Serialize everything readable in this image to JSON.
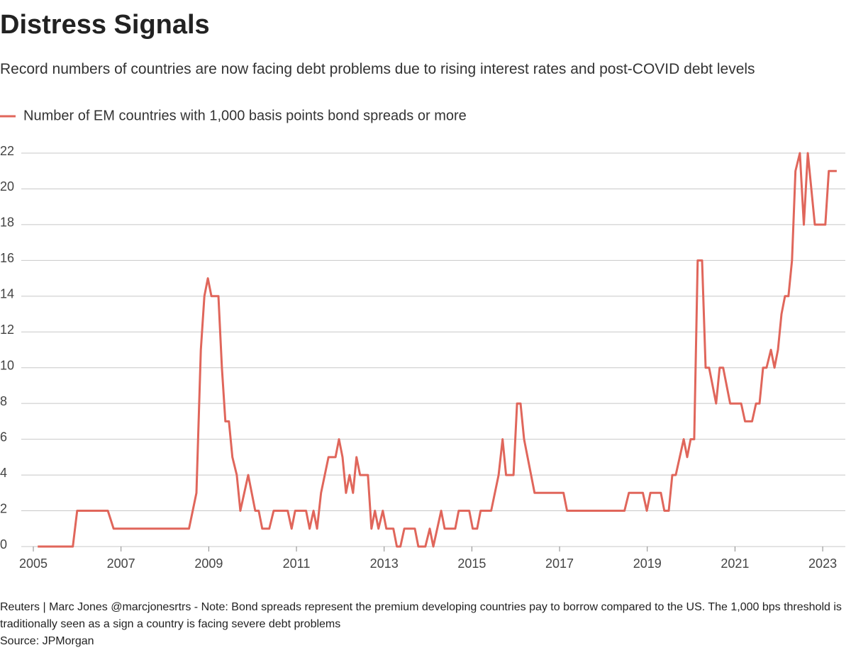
{
  "chart_data": {
    "type": "line",
    "title": "Distress Signals",
    "subtitle": "Record numbers of countries are now facing debt problems due to rising interest rates and post-COVID debt levels",
    "note": "Reuters | Marc Jones @marcjonesrtrs - Note: Bond spreads represent the premium developing countries pay to borrow compared to the US. The 1,000 bps threshold is traditionally seen as a sign a country is facing severe debt problems",
    "source": "Source: JPMorgan",
    "x": [
      2005.1,
      2005.9,
      2006.0,
      2006.7,
      2006.83,
      2008.55,
      2008.72,
      2008.82,
      2008.9,
      2008.98,
      2009.06,
      2009.22,
      2009.3,
      2009.38,
      2009.46,
      2009.54,
      2009.64,
      2009.72,
      2009.9,
      2010.06,
      2010.14,
      2010.22,
      2010.38,
      2010.48,
      2010.8,
      2010.89,
      2010.97,
      2011.22,
      2011.3,
      2011.39,
      2011.47,
      2011.56,
      2011.73,
      2011.89,
      2011.97,
      2012.05,
      2012.13,
      2012.21,
      2012.29,
      2012.37,
      2012.45,
      2012.63,
      2012.71,
      2012.79,
      2012.87,
      2012.97,
      2013.05,
      2013.21,
      2013.29,
      2013.37,
      2013.46,
      2013.7,
      2013.78,
      2013.94,
      2014.04,
      2014.12,
      2014.3,
      2014.38,
      2014.62,
      2014.7,
      2014.94,
      2015.02,
      2015.12,
      2015.2,
      2015.44,
      2015.61,
      2015.7,
      2015.78,
      2015.95,
      2016.03,
      2016.11,
      2016.19,
      2016.43,
      2017.09,
      2017.17,
      2018.48,
      2018.58,
      2018.9,
      2018.99,
      2019.07,
      2019.31,
      2019.39,
      2019.49,
      2019.57,
      2019.65,
      2019.83,
      2019.91,
      2019.99,
      2020.07,
      2020.15,
      2020.25,
      2020.33,
      2020.41,
      2020.57,
      2020.65,
      2020.73,
      2020.89,
      2021.14,
      2021.23,
      2021.39,
      2021.48,
      2021.56,
      2021.64,
      2021.72,
      2021.82,
      2021.9,
      2021.98,
      2022.06,
      2022.14,
      2022.22,
      2022.3,
      2022.38,
      2022.48,
      2022.57,
      2022.66,
      2022.82,
      2023.06,
      2023.14,
      2023.32
    ],
    "series": [
      {
        "name": "Number of EM countries with 1,000 basis points bond spreads or more",
        "color": "#e0665b",
        "values": [
          0,
          0,
          2,
          2,
          1,
          1,
          3,
          11,
          14,
          15,
          14,
          14,
          10,
          7,
          7,
          5,
          4,
          2,
          4,
          2,
          2,
          1,
          1,
          2,
          2,
          1,
          2,
          2,
          1,
          2,
          1,
          3,
          5,
          5,
          6,
          5,
          3,
          4,
          3,
          5,
          4,
          4,
          1,
          2,
          1,
          2,
          1,
          1,
          0,
          0,
          1,
          1,
          0,
          0,
          1,
          0,
          2,
          1,
          1,
          2,
          2,
          1,
          1,
          2,
          2,
          4,
          6,
          4,
          4,
          8,
          8,
          6,
          3,
          3,
          2,
          2,
          3,
          3,
          2,
          3,
          3,
          2,
          2,
          4,
          4,
          6,
          5,
          6,
          6,
          16,
          16,
          10,
          10,
          8,
          10,
          10,
          8,
          8,
          7,
          7,
          8,
          8,
          10,
          10,
          11,
          10,
          11,
          13,
          14,
          14,
          16,
          21,
          22,
          18,
          22,
          18,
          18,
          21,
          21
        ]
      }
    ],
    "xlim": [
      2005,
      2023.5
    ],
    "xticks": [
      2005,
      2007,
      2009,
      2011,
      2013,
      2015,
      2017,
      2019,
      2021,
      2023
    ],
    "ylim": [
      0,
      22
    ],
    "yticks": [
      0,
      2,
      4,
      6,
      8,
      10,
      12,
      14,
      16,
      18,
      20,
      22
    ],
    "grid": true
  }
}
